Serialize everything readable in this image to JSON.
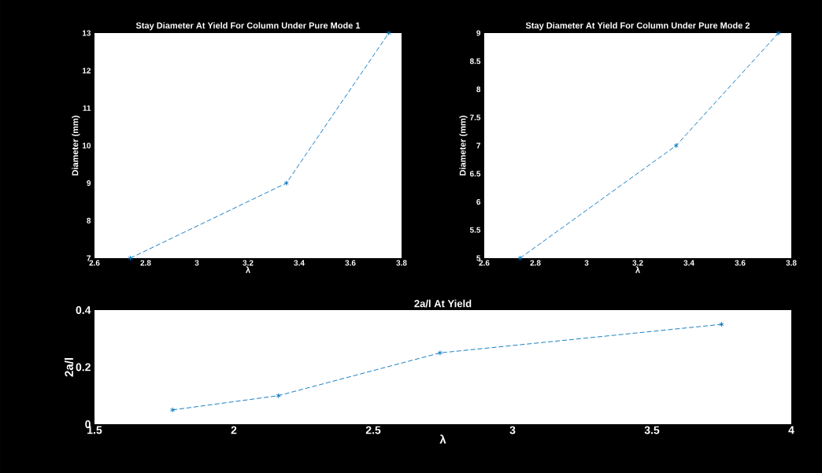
{
  "chart_data": [
    {
      "type": "line",
      "title": "Stay Diameter At Yield For Column Under Pure Mode 1",
      "xlabel": "λ",
      "ylabel": "Diameter (mm)",
      "x": [
        2.74,
        3.35,
        3.75
      ],
      "series": [
        {
          "color": "#0072bd",
          "values": [
            7,
            9,
            13
          ]
        }
      ],
      "xlim": [
        2.6,
        3.8
      ],
      "ylim": [
        7,
        13
      ],
      "xticks": [
        2.6,
        2.8,
        3,
        3.2,
        3.4,
        3.6,
        3.8
      ],
      "yticks": [
        7,
        8,
        9,
        10,
        11,
        12,
        13
      ],
      "marker": "cross",
      "line_style": "dashed"
    },
    {
      "type": "line",
      "title": "Stay Diameter At Yield For Column Under Pure Mode 2",
      "xlabel": "λ",
      "ylabel": "Diameter (mm)",
      "x": [
        2.74,
        3.35,
        3.75
      ],
      "series": [
        {
          "color": "#0072bd",
          "values": [
            5,
            7,
            9
          ]
        }
      ],
      "xlim": [
        2.6,
        3.8
      ],
      "ylim": [
        5,
        9
      ],
      "xticks": [
        2.6,
        2.8,
        3,
        3.2,
        3.4,
        3.6,
        3.8
      ],
      "yticks": [
        5,
        5.5,
        6,
        6.5,
        7,
        7.5,
        8,
        8.5,
        9
      ],
      "marker": "cross",
      "line_style": "dashed"
    },
    {
      "type": "line",
      "title": "2a/l At Yield",
      "xlabel": "λ",
      "ylabel": "2a/l",
      "x": [
        1.78,
        2.16,
        2.74,
        3.75
      ],
      "series": [
        {
          "color": "#0072bd",
          "values": [
            0.05,
            0.1,
            0.25,
            0.35
          ]
        }
      ],
      "xlim": [
        1.5,
        4
      ],
      "ylim": [
        0,
        0.4
      ],
      "xticks": [
        1.5,
        2,
        2.5,
        3,
        3.5,
        4
      ],
      "yticks": [
        0,
        0.2,
        0.4
      ],
      "marker": "cross",
      "line_style": "dashed"
    }
  ]
}
